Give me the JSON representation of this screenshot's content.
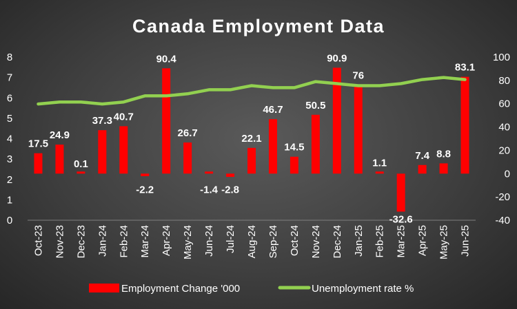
{
  "chart_data": {
    "type": "bar",
    "title": "Canada Employment Data",
    "categories": [
      "Oct-23",
      "Nov-23",
      "Dec-23",
      "Jan-24",
      "Feb-24",
      "Mar-24",
      "Apr-24",
      "May-24",
      "Jun-24",
      "Jul-24",
      "Aug-24",
      "Sep-24",
      "Oct-24",
      "Nov-24",
      "Dec-24",
      "Jan-25",
      "Feb-25",
      "Mar-25",
      "Apr-25",
      "May-25",
      "Jun-25"
    ],
    "series": [
      {
        "name": "Employment Change '000",
        "type": "bar",
        "axis": "right",
        "color": "#ff0000",
        "values": [
          17.5,
          24.9,
          0.1,
          37.3,
          40.7,
          -2.2,
          90.4,
          26.7,
          -1.4,
          -2.8,
          22.1,
          46.7,
          14.5,
          50.5,
          90.9,
          76,
          1.1,
          -32.6,
          7.4,
          8.8,
          83.1
        ],
        "labels": [
          "17.5",
          "24.9",
          "0.1",
          "37.3",
          "40.7",
          "-2.2",
          "90.4",
          "26.7",
          "-1.4",
          "-2.8",
          "22.1",
          "46.7",
          "14.5",
          "50.5",
          "90.9",
          "76",
          "1.1",
          "-32.6",
          "7.4",
          "8.8",
          "83.1"
        ]
      },
      {
        "name": "Unemployment rate %",
        "type": "line",
        "axis": "left",
        "color": "#92d050",
        "values": [
          5.7,
          5.8,
          5.8,
          5.7,
          5.8,
          6.1,
          6.1,
          6.2,
          6.4,
          6.4,
          6.6,
          6.5,
          6.5,
          6.8,
          6.7,
          6.6,
          6.6,
          6.7,
          6.9,
          7.0,
          6.9
        ]
      }
    ],
    "left_axis": {
      "min": 0,
      "max": 8,
      "ticks": [
        "0",
        "1",
        "2",
        "3",
        "4",
        "5",
        "6",
        "7",
        "8"
      ]
    },
    "right_axis": {
      "min": -40,
      "max": 100,
      "ticks": [
        "-40",
        "-20",
        "0",
        "20",
        "40",
        "60",
        "80",
        "100"
      ]
    },
    "grid": false,
    "legend_position": "bottom"
  }
}
